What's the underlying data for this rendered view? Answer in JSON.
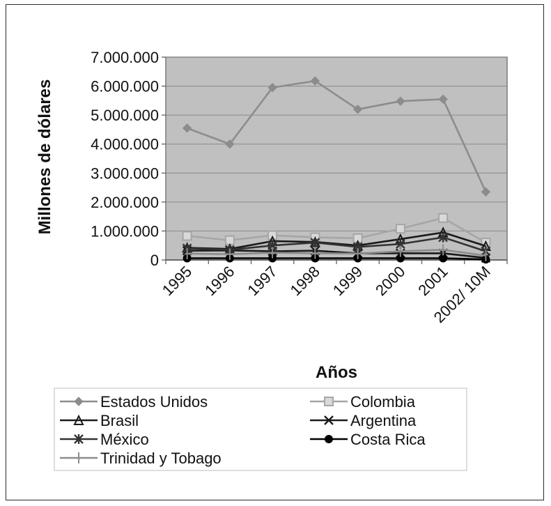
{
  "chart_data": {
    "type": "line",
    "ylabel": "Millones de dólares",
    "xlabel": "Años",
    "categories": [
      "1995",
      "1996",
      "1997",
      "1998",
      "1999",
      "2000",
      "2001",
      "2002/ 10M"
    ],
    "ylim": [
      0,
      7000000
    ],
    "yticks": [
      0,
      1000000,
      2000000,
      3000000,
      4000000,
      5000000,
      6000000,
      7000000
    ],
    "ytick_labels": [
      "0",
      "1.000.000",
      "2.000.000",
      "3.000.000",
      "4.000.000",
      "5.000.000",
      "6.000.000",
      "7.000.000"
    ],
    "grid": true,
    "legend_position": "bottom",
    "plot_background": "#c0c0c0",
    "series": [
      {
        "name": "Estados Unidos",
        "marker": "diamond",
        "color": "#8c8c8c",
        "values": [
          4550000,
          4000000,
          5950000,
          6180000,
          5200000,
          5480000,
          5550000,
          2350000
        ]
      },
      {
        "name": "Colombia",
        "marker": "square",
        "color": "#a6a6a6",
        "values": [
          830000,
          680000,
          850000,
          780000,
          750000,
          1080000,
          1450000,
          600000
        ]
      },
      {
        "name": "Brasil",
        "marker": "triangle",
        "color": "#1a1a1a",
        "values": [
          420000,
          380000,
          650000,
          620000,
          500000,
          720000,
          950000,
          480000
        ]
      },
      {
        "name": "Argentina",
        "marker": "x",
        "color": "#1a1a1a",
        "values": [
          320000,
          330000,
          300000,
          320000,
          230000,
          230000,
          230000,
          70000
        ]
      },
      {
        "name": "México",
        "marker": "asterisk",
        "color": "#333333",
        "values": [
          400000,
          350000,
          500000,
          600000,
          450000,
          550000,
          780000,
          300000
        ]
      },
      {
        "name": "Costa Rica",
        "marker": "circle",
        "color": "#000000",
        "values": [
          60000,
          60000,
          60000,
          60000,
          60000,
          60000,
          60000,
          20000
        ]
      },
      {
        "name": "Trinidad y Tobago",
        "marker": "plus",
        "color": "#8c8c8c",
        "values": [
          220000,
          200000,
          250000,
          230000,
          220000,
          300000,
          350000,
          150000
        ]
      }
    ]
  }
}
